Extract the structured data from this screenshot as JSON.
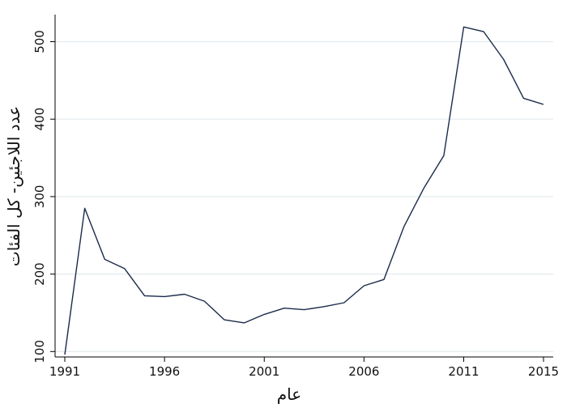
{
  "chart_data": {
    "type": "line",
    "title": "",
    "xlabel": "عام",
    "ylabel": "عدد اللاجئين- كل الفئات",
    "xlim": [
      1991,
      2015
    ],
    "ylim": [
      93,
      535
    ],
    "grid": true,
    "x_ticks": [
      1991,
      1996,
      2001,
      2006,
      2011,
      2015
    ],
    "x_tick_labels": [
      "1991",
      "1996",
      "2001",
      "2006",
      "2011",
      "2015"
    ],
    "y_ticks": [
      100,
      200,
      300,
      400,
      500
    ],
    "y_tick_labels": [
      "100",
      "200",
      "300",
      "400",
      "500"
    ],
    "series": [
      {
        "color": "#1b2a4a",
        "x": [
          1991,
          1992,
          1993,
          1994,
          1995,
          1996,
          1997,
          1998,
          1999,
          2000,
          2001,
          2002,
          2003,
          2004,
          2005,
          2006,
          2007,
          2008,
          2009,
          2010,
          2011,
          2012,
          2013,
          2014,
          2015
        ],
        "y": [
          96,
          285,
          219,
          207,
          172,
          171,
          174,
          165,
          141,
          137,
          148,
          156,
          154,
          158,
          163,
          185,
          193,
          261,
          311,
          353,
          519,
          513,
          477,
          427,
          419
        ]
      }
    ]
  }
}
